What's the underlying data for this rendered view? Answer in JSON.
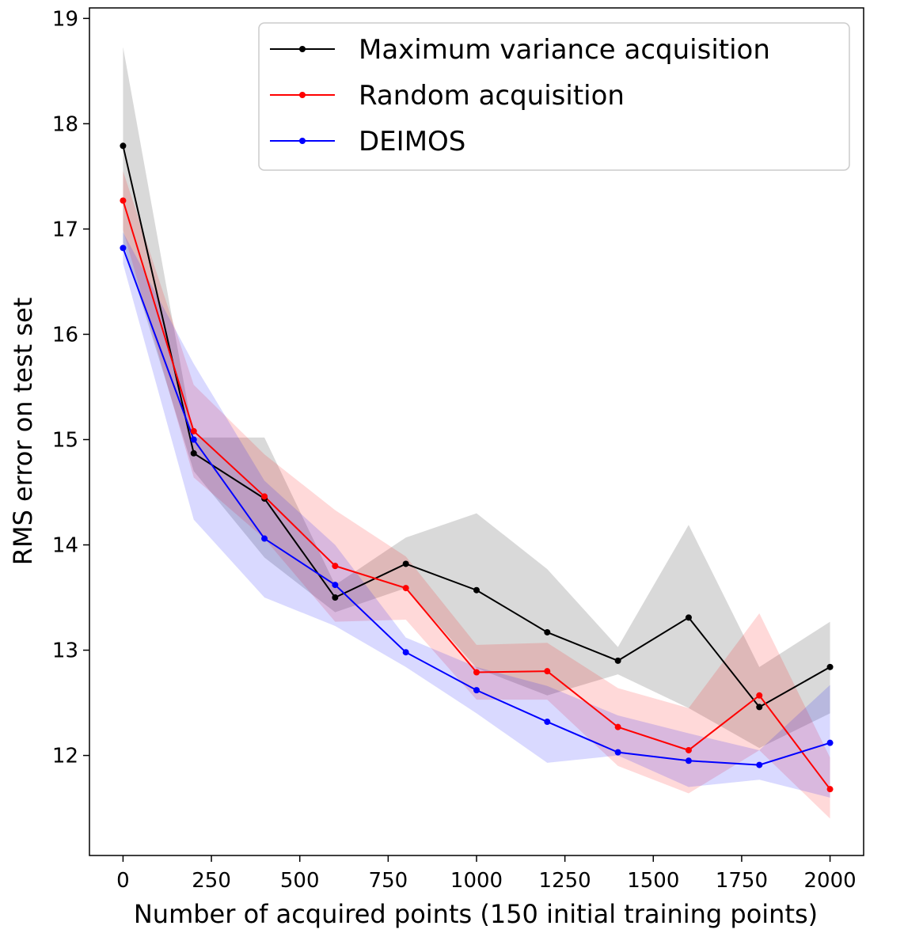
{
  "chart_data": {
    "type": "line",
    "xlabel": "Number of acquired points (150 initial training points)",
    "ylabel": "RMS error on test set",
    "xlim": [
      -95,
      2095
    ],
    "ylim": [
      11.05,
      19.1
    ],
    "xticks": [
      0,
      250,
      500,
      750,
      1000,
      1250,
      1500,
      1750,
      2000
    ],
    "yticks": [
      12,
      13,
      14,
      15,
      16,
      17,
      18,
      19
    ],
    "x": [
      0,
      200,
      400,
      600,
      800,
      1000,
      1200,
      1400,
      1600,
      1800,
      2000
    ],
    "legend_position": "top-right",
    "series": [
      {
        "name": "Maximum variance acquisition",
        "color": "#000000",
        "values": [
          17.79,
          14.87,
          14.44,
          13.5,
          13.82,
          13.57,
          13.17,
          12.9,
          13.31,
          12.46,
          12.84
        ],
        "band_upper": [
          18.73,
          15.02,
          15.02,
          13.62,
          14.07,
          14.3,
          13.77,
          13.03,
          14.19,
          12.84,
          13.27
        ],
        "band_lower": [
          16.87,
          14.7,
          13.88,
          13.36,
          13.59,
          12.83,
          12.57,
          12.77,
          12.45,
          12.07,
          12.4
        ]
      },
      {
        "name": "Random acquisition",
        "color": "#ff0000",
        "values": [
          17.27,
          15.08,
          14.46,
          13.8,
          13.59,
          12.79,
          12.8,
          12.27,
          12.05,
          12.57,
          11.68
        ],
        "band_upper": [
          17.55,
          15.52,
          14.86,
          14.33,
          13.89,
          13.05,
          13.07,
          12.64,
          12.45,
          13.35,
          11.98
        ],
        "band_lower": [
          16.99,
          14.64,
          14.06,
          13.27,
          13.29,
          12.53,
          12.53,
          11.9,
          11.64,
          12.05,
          11.4
        ]
      },
      {
        "name": "DEIMOS",
        "color": "#0000ff",
        "values": [
          16.82,
          15.0,
          14.06,
          13.62,
          12.98,
          12.62,
          12.32,
          12.03,
          11.95,
          11.91,
          12.12
        ],
        "band_upper": [
          16.97,
          15.72,
          14.61,
          14.0,
          13.12,
          12.84,
          12.66,
          12.38,
          12.21,
          12.05,
          12.67
        ],
        "band_lower": [
          16.67,
          14.24,
          13.5,
          13.23,
          12.84,
          12.4,
          11.93,
          12.0,
          11.7,
          11.77,
          11.6
        ]
      }
    ]
  }
}
